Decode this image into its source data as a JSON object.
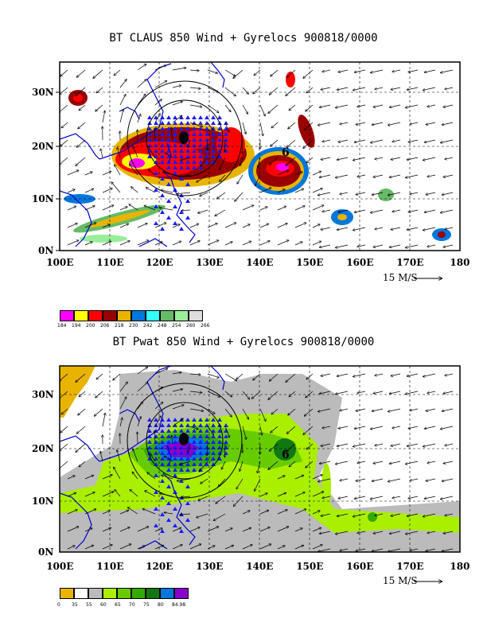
{
  "panels": [
    {
      "title": "BT CLAUS 850 Wind + Gyrelocs 900818/0000",
      "lat_labels": [
        "30N",
        "20N",
        "10N",
        "0N"
      ],
      "lon_labels": [
        "100E",
        "110E",
        "120E",
        "130E",
        "140E",
        "150E",
        "160E",
        "170E",
        "180"
      ],
      "vector_scale": "15 M/S",
      "legend": {
        "labels": [
          "184",
          "194",
          "200",
          "206",
          "218",
          "230",
          "242",
          "248",
          "254",
          "260",
          "266"
        ],
        "colors": [
          "#ff00ff",
          "#ffff00",
          "#ff0000",
          "#990000",
          "#e8b400",
          "#0077dd",
          "#33ffff",
          "#66bb66",
          "#99ee99",
          "#dddddd"
        ]
      }
    },
    {
      "title": "BT Pwat 850 Wind + Gyrelocs 900818/0000",
      "lat_labels": [
        "30N",
        "20N",
        "10N",
        "0N"
      ],
      "lon_labels": [
        "100E",
        "110E",
        "120E",
        "130E",
        "140E",
        "150E",
        "160E",
        "170E",
        "180"
      ],
      "vector_scale": "15 M/S",
      "legend": {
        "labels": [
          "0",
          "35",
          "55",
          "60",
          "65",
          "70",
          "75",
          "80",
          "84.98"
        ],
        "colors": [
          "#e8b400",
          "#ffffff",
          "#bbbbbb",
          "#aaee00",
          "#66cc00",
          "#33aa00",
          "#117711",
          "#0077dd",
          "#8800cc"
        ]
      }
    }
  ],
  "gyres": {
    "markers": [
      "6",
      "6"
    ]
  }
}
